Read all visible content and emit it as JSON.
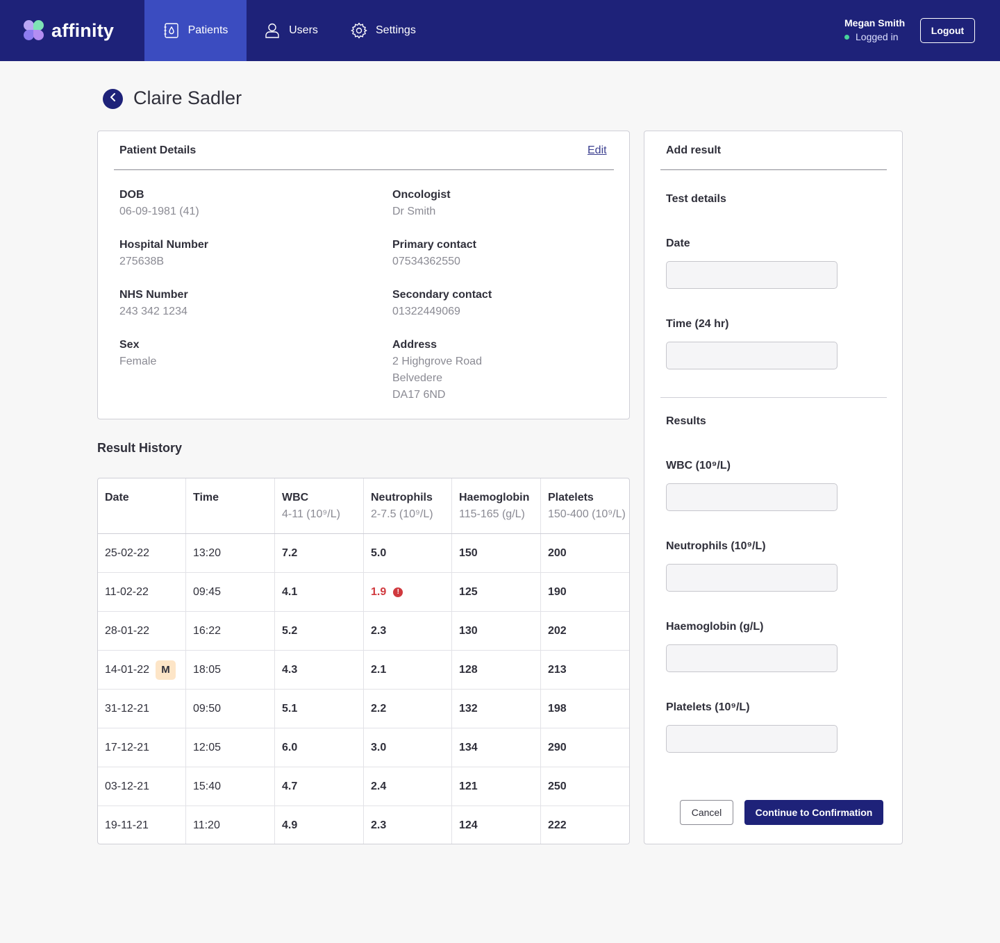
{
  "app": {
    "brand": "affinity",
    "colors": {
      "primary": "#1e2279",
      "nav_active": "#3b4cc0",
      "alert": "#d0393e",
      "badge": "#fde5c7",
      "status_online": "#47d49a"
    }
  },
  "nav": {
    "items": [
      {
        "label": "Patients",
        "icon": "patient-file-icon",
        "active": true
      },
      {
        "label": "Users",
        "icon": "user-icon",
        "active": false
      },
      {
        "label": "Settings",
        "icon": "gear-icon",
        "active": false
      }
    ]
  },
  "user": {
    "name": "Megan Smith",
    "status": "Logged in",
    "logout_label": "Logout"
  },
  "page": {
    "title": "Claire Sadler",
    "back_icon": "chevron-left-icon"
  },
  "patient_details": {
    "heading": "Patient Details",
    "edit_label": "Edit",
    "left": [
      {
        "label": "DOB",
        "value": "06-09-1981 (41)"
      },
      {
        "label": "Hospital Number",
        "value": "275638B"
      },
      {
        "label": "NHS Number",
        "value": "243 342 1234"
      },
      {
        "label": "Sex",
        "value": "Female"
      }
    ],
    "right": [
      {
        "label": "Oncologist",
        "value": "Dr Smith"
      },
      {
        "label": "Primary contact",
        "value": "07534362550"
      },
      {
        "label": "Secondary contact",
        "value": "01322449069"
      },
      {
        "label": "Address",
        "lines": [
          "2 Highgrove Road",
          "Belvedere",
          "DA17 6ND"
        ]
      }
    ]
  },
  "history": {
    "title": "Result History",
    "columns": [
      {
        "label": "Date",
        "range": ""
      },
      {
        "label": "Time",
        "range": ""
      },
      {
        "label": "WBC",
        "range": "4-11 (10⁹/L)"
      },
      {
        "label": "Neutrophils",
        "range": "2-7.5 (10⁹/L)"
      },
      {
        "label": "Haemoglobin",
        "range": "115-165 (g/L)"
      },
      {
        "label": "Platelets",
        "range": "150-400 (10⁹/L)"
      }
    ],
    "rows": [
      {
        "date": "25-02-22",
        "time": "13:20",
        "wbc": "7.2",
        "neut": "5.0",
        "hb": "150",
        "plt": "200"
      },
      {
        "date": "11-02-22",
        "time": "09:45",
        "wbc": "4.1",
        "neut": "1.9",
        "hb": "125",
        "plt": "190",
        "neut_alert": true,
        "alert_icon": "exclamation-icon",
        "alert_glyph": "!"
      },
      {
        "date": "28-01-22",
        "time": "16:22",
        "wbc": "5.2",
        "neut": "2.3",
        "hb": "130",
        "plt": "202"
      },
      {
        "date": "14-01-22",
        "time": "18:05",
        "wbc": "4.3",
        "neut": "2.1",
        "hb": "128",
        "plt": "213",
        "badge": "M"
      },
      {
        "date": "31-12-21",
        "time": "09:50",
        "wbc": "5.1",
        "neut": "2.2",
        "hb": "132",
        "plt": "198"
      },
      {
        "date": "17-12-21",
        "time": "12:05",
        "wbc": "6.0",
        "neut": "3.0",
        "hb": "134",
        "plt": "290"
      },
      {
        "date": "03-12-21",
        "time": "15:40",
        "wbc": "4.7",
        "neut": "2.4",
        "hb": "121",
        "plt": "250"
      },
      {
        "date": "19-11-21",
        "time": "11:20",
        "wbc": "4.9",
        "neut": "2.3",
        "hb": "124",
        "plt": "222"
      }
    ]
  },
  "add_result": {
    "heading": "Add result",
    "test_details": "Test details",
    "date_label": "Date",
    "date_value": "",
    "time_label": "Time (24 hr)",
    "time_value": "",
    "results_heading": "Results",
    "wbc_label": "WBC (10⁹/L)",
    "wbc_value": "",
    "neut_label": "Neutrophils (10⁹/L)",
    "neut_value": "",
    "hb_label": "Haemoglobin (g/L)",
    "hb_value": "",
    "plt_label": "Platelets (10⁹/L)",
    "plt_value": "",
    "cancel_label": "Cancel",
    "continue_label": "Continue to Confirmation"
  }
}
